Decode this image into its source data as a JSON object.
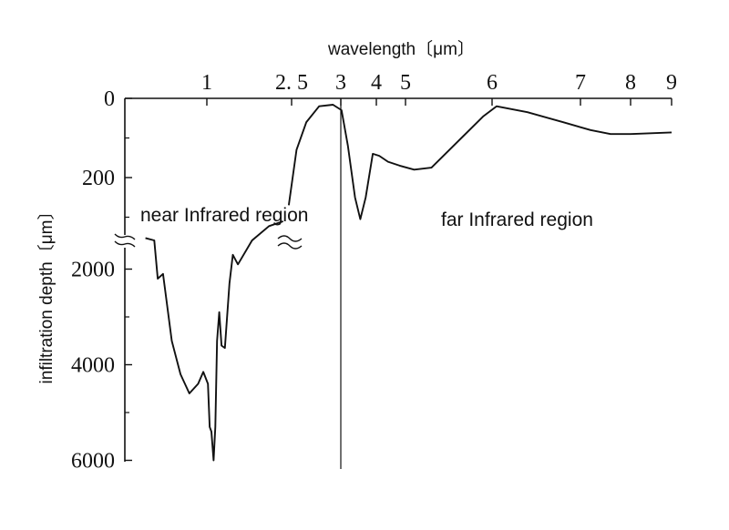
{
  "chart_data": {
    "type": "line",
    "title": "",
    "xlabel": "wavelength〔μm〕",
    "ylabel": "infiltration depth〔μm〕",
    "x_scale": "nonlinear (broken axis)",
    "y_scale": "broken axis: 0–300 upper segment, 1000–6000 lower segment",
    "y_inverted": true,
    "grid": false,
    "legend": "none",
    "x_ticks": [
      "1",
      "2.5",
      "3",
      "4",
      "5",
      "6",
      "7",
      "8",
      "9"
    ],
    "y_ticks": [
      "0",
      "200",
      "2000",
      "4000",
      "6000"
    ],
    "annotations": [
      {
        "text": "near Infrared region"
      },
      {
        "text": "far Infrared region"
      }
    ],
    "vertical_marker_x": 3,
    "series": [
      {
        "points": [
          [
            0.65,
            1350
          ],
          [
            0.7,
            1400
          ],
          [
            0.72,
            2200
          ],
          [
            0.75,
            2100
          ],
          [
            0.8,
            3500
          ],
          [
            0.85,
            4200
          ],
          [
            0.9,
            4600
          ],
          [
            0.95,
            4400
          ],
          [
            0.98,
            4150
          ],
          [
            1.02,
            4400
          ],
          [
            1.05,
            5300
          ],
          [
            1.08,
            5400
          ],
          [
            1.12,
            6000
          ],
          [
            1.15,
            5300
          ],
          [
            1.18,
            3500
          ],
          [
            1.22,
            2900
          ],
          [
            1.26,
            3600
          ],
          [
            1.32,
            3650
          ],
          [
            1.4,
            2300
          ],
          [
            1.46,
            1700
          ],
          [
            1.55,
            1900
          ],
          [
            1.8,
            1400
          ],
          [
            2.1,
            1100
          ],
          [
            2.35,
            1000
          ],
          [
            2.45,
            270
          ],
          [
            2.55,
            130
          ],
          [
            2.65,
            60
          ],
          [
            2.78,
            20
          ],
          [
            2.92,
            16
          ],
          [
            3.02,
            30
          ],
          [
            3.2,
            120
          ],
          [
            3.4,
            250
          ],
          [
            3.55,
            305
          ],
          [
            3.7,
            250
          ],
          [
            3.9,
            140
          ],
          [
            4.1,
            145
          ],
          [
            4.4,
            160
          ],
          [
            4.8,
            170
          ],
          [
            5.1,
            180
          ],
          [
            5.3,
            175
          ],
          [
            5.6,
            110
          ],
          [
            5.9,
            45
          ],
          [
            6.05,
            20
          ],
          [
            6.4,
            35
          ],
          [
            6.8,
            60
          ],
          [
            7.2,
            80
          ],
          [
            7.6,
            90
          ],
          [
            8.0,
            90
          ],
          [
            8.5,
            88
          ],
          [
            9.0,
            86
          ]
        ]
      }
    ]
  }
}
